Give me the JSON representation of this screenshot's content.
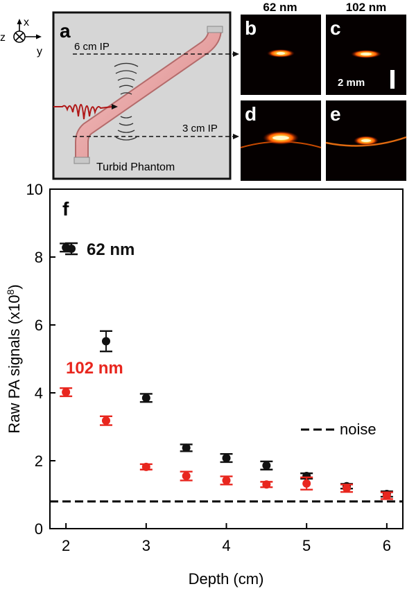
{
  "colors": {
    "series_62": "#111111",
    "series_102": "#e8261e",
    "noise_line": "#000000",
    "phantom_bg": "#d6d6d6",
    "tube": "#e9a3a3",
    "pulse": "#b01818"
  },
  "schematic": {
    "panel_label": "a",
    "axis_x": "x",
    "axis_y": "y",
    "axis_z": "z",
    "ip_top": "6 cm IP",
    "ip_bottom": "3 cm IP",
    "phantom_label": "Turbid Phantom"
  },
  "images": {
    "col_headers": [
      "62 nm",
      "102 nm"
    ],
    "panels": [
      {
        "label": "b"
      },
      {
        "label": "c"
      },
      {
        "label": "d"
      },
      {
        "label": "e"
      }
    ],
    "scale_bar": "2 mm"
  },
  "chart_data": {
    "type": "scatter",
    "panel_label": "f",
    "xlabel": "Depth (cm)",
    "ylabel": "Raw PA signals (x10",
    "ylabel_sup": "8",
    "ylabel_close": ")",
    "xlim": [
      1.8,
      6.2
    ],
    "ylim": [
      0,
      10
    ],
    "xticks": [
      "2",
      "3",
      "4",
      "5",
      "6"
    ],
    "yticks": [
      "0",
      "2",
      "4",
      "6",
      "8",
      "10"
    ],
    "series": [
      {
        "name": "62 nm",
        "x": [
          2,
          2.5,
          3,
          3.5,
          4,
          4.5,
          5,
          5.5,
          6
        ],
        "y": [
          8.28,
          5.52,
          3.85,
          2.38,
          2.08,
          1.86,
          1.55,
          1.25,
          1.02
        ],
        "err": [
          0.12,
          0.3,
          0.12,
          0.1,
          0.12,
          0.12,
          0.08,
          0.07,
          0.08
        ]
      },
      {
        "name": "102 nm",
        "x": [
          2,
          2.5,
          3,
          3.5,
          4,
          4.5,
          5,
          5.5,
          6
        ],
        "y": [
          4.02,
          3.18,
          1.82,
          1.55,
          1.42,
          1.3,
          1.33,
          1.19,
          0.97
        ],
        "err": [
          0.12,
          0.13,
          0.08,
          0.13,
          0.12,
          0.08,
          0.18,
          0.11,
          0.1
        ]
      }
    ],
    "noise": {
      "name": "noise",
      "y": 0.8
    },
    "grid": false,
    "legend": "inline labels"
  }
}
